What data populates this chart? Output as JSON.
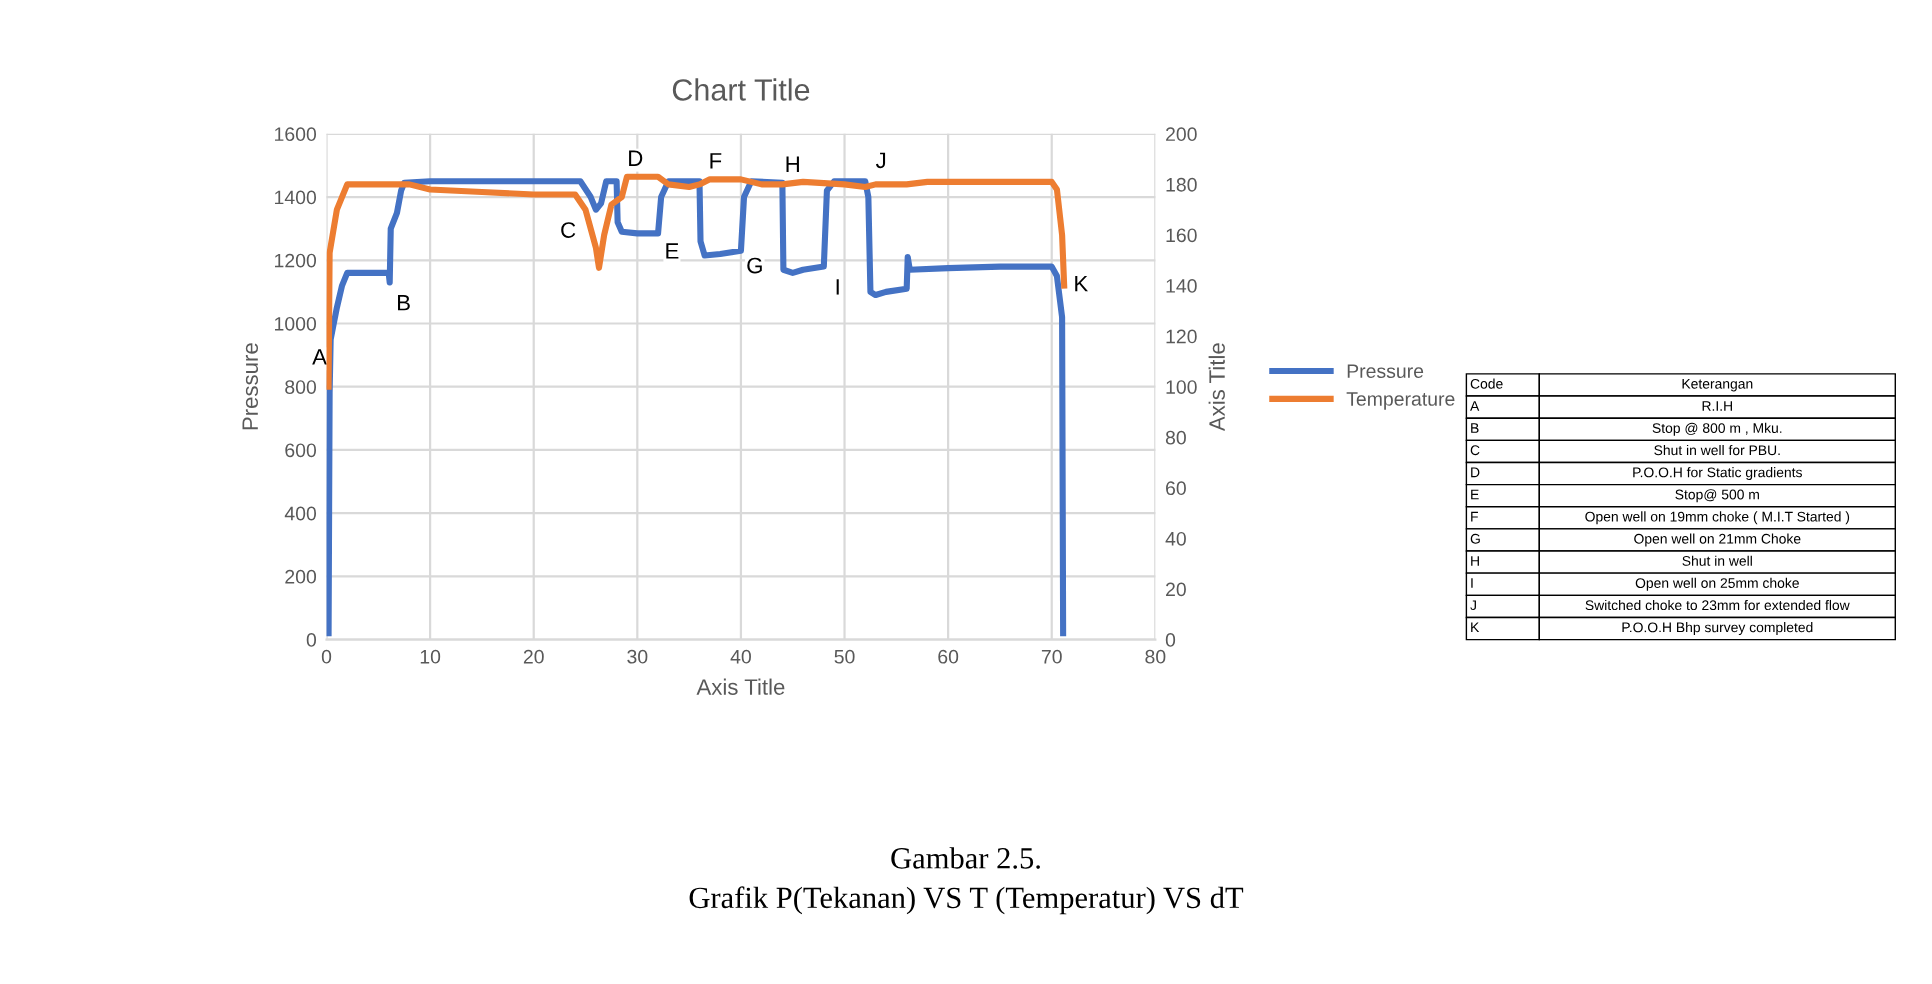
{
  "chart_data": {
    "type": "line",
    "title": "Chart Title",
    "xlabel": "Axis Title",
    "ylabel": "Pressure",
    "y2label": "Axis Title",
    "xlim": [
      0,
      80
    ],
    "xticks": [
      0,
      10,
      20,
      30,
      40,
      50,
      60,
      70,
      80
    ],
    "ylim": [
      0,
      1600
    ],
    "yticks": [
      0,
      200,
      400,
      600,
      800,
      1000,
      1200,
      1400,
      1600
    ],
    "y2lim": [
      0,
      200
    ],
    "y2ticks": [
      0,
      20,
      40,
      60,
      80,
      100,
      120,
      140,
      160,
      180,
      200
    ],
    "grid": true,
    "legend": "right",
    "marker": "none",
    "line_style": "solid",
    "series": [
      {
        "name": "Pressure",
        "color": "#4472c4",
        "x": [
          0.2,
          0.3,
          0.4,
          0.7,
          1,
          1.5,
          2,
          3,
          6,
          6.1,
          6.2,
          6.8,
          7.2,
          7.5,
          10,
          24.5,
          25.5,
          26,
          26.5,
          27,
          28,
          28.1,
          28.5,
          30,
          32,
          32.3,
          33,
          36,
          36.1,
          36.5,
          38,
          40,
          40.3,
          41,
          44,
          44.1,
          45,
          46,
          48,
          48.3,
          49,
          52,
          52.3,
          52.5,
          53,
          54,
          56,
          56.1,
          56.3,
          60,
          65,
          70,
          70.5,
          71,
          71.1
        ],
        "values": [
          20,
          780,
          950,
          1000,
          1050,
          1120,
          1160,
          1160,
          1160,
          1130,
          1300,
          1350,
          1420,
          1445,
          1450,
          1450,
          1400,
          1360,
          1380,
          1450,
          1450,
          1320,
          1290,
          1285,
          1285,
          1400,
          1450,
          1450,
          1260,
          1215,
          1220,
          1230,
          1400,
          1450,
          1445,
          1170,
          1160,
          1170,
          1180,
          1420,
          1450,
          1450,
          1400,
          1100,
          1090,
          1100,
          1110,
          1210,
          1170,
          1175,
          1180,
          1180,
          1150,
          1020,
          20
        ]
      },
      {
        "name": "Temperature",
        "color": "#ed7d31",
        "axis": "y2",
        "x": [
          0.2,
          0.3,
          1,
          2,
          7,
          8,
          10,
          15,
          20,
          24,
          25,
          26,
          26.3,
          26.8,
          27.5,
          28.5,
          29,
          32,
          33,
          35,
          36,
          37,
          40,
          42,
          44,
          46,
          50,
          52,
          53,
          56,
          58,
          70,
          70.5,
          71,
          71.2
        ],
        "values": [
          100,
          153,
          170,
          180,
          180,
          180,
          178,
          177,
          176,
          176,
          170,
          155,
          147,
          160,
          172,
          175,
          183,
          183,
          180,
          179,
          180,
          182,
          182,
          180,
          180,
          181,
          180,
          179,
          180,
          180,
          181,
          181,
          178,
          160,
          140
        ]
      }
    ],
    "annotations": [
      {
        "text": "A",
        "x": 0.4,
        "y": 950
      },
      {
        "text": "B",
        "x": 6.1,
        "y": 1130
      },
      {
        "text": "C",
        "x": 26,
        "y": 1360
      },
      {
        "text": "D",
        "x": 29,
        "y": 1464
      },
      {
        "text": "E",
        "x": 32,
        "y": 1285
      },
      {
        "text": "F",
        "x": 37,
        "y": 1456
      },
      {
        "text": "G",
        "x": 40,
        "y": 1230
      },
      {
        "text": "H",
        "x": 45,
        "y": 1445
      },
      {
        "text": "I",
        "x": 48,
        "y": 1180
      },
      {
        "text": "J",
        "x": 53,
        "y": 1440
      },
      {
        "text": "K",
        "x": 71.2,
        "y": 1120
      },
      "Code",
      "Keterangan",
      "A",
      "R.I.H",
      "B",
      "Stop @ 800 m , Mku.",
      "C",
      "Shut in well for PBU.",
      "D",
      "P.O.O.H for Static gradients",
      "E",
      "Stop@ 500 m",
      "F",
      "Open well on 19mm choke ( M.I.T Started )",
      "G",
      "Open well on 21mm Choke",
      "H",
      "Shut in well",
      "I",
      "Open well on 25mm choke",
      "J",
      "Switched choke to 23mm for extended flow",
      "K",
      "P.O.O.H Bhp survey completed",
      "Gambar 2.5.",
      "Grafik P(Tekanan) VS T (Temperatur) VS dT"
    ]
  }
}
